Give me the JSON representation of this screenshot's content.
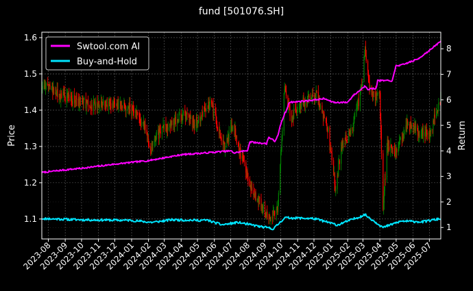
{
  "chart_data": {
    "type": "line",
    "title": "fund [501076.SH]",
    "ylabel_left": "Price",
    "ylabel_right": "Return",
    "ylim_left": [
      1.045,
      1.615
    ],
    "ylim_right": [
      0.55,
      8.65
    ],
    "y_ticks_left": [
      "1.1",
      "1.2",
      "1.3",
      "1.4",
      "1.5",
      "1.6"
    ],
    "y_ticks_right": [
      "1",
      "2",
      "3",
      "4",
      "5",
      "6",
      "7",
      "8"
    ],
    "x_ticks": [
      "2023-08",
      "2023-09",
      "2023-10",
      "2023-11",
      "2023-12",
      "2024-01",
      "2024-02",
      "2024-03",
      "2024-04",
      "2024-05",
      "2024-06",
      "2024-07",
      "2024-08",
      "2024-09",
      "2024-10",
      "2024-11",
      "2024-12",
      "2025-01",
      "2025-02",
      "2025-03",
      "2025-04",
      "2025-05",
      "2025-06",
      "2025-07"
    ],
    "grid": true,
    "legend_position": "top-left",
    "colors": {
      "up": "#008000",
      "down": "#ff0000",
      "strategy": "#ff00ff",
      "benchmark": "#00e5ff",
      "grid": "#666666"
    },
    "series": [
      {
        "name": "Swtool.com AI",
        "axis": "right",
        "points": [
          [
            "2023-07-20",
            3.15
          ],
          [
            "2023-08-15",
            3.22
          ],
          [
            "2023-10-01",
            3.32
          ],
          [
            "2023-12-01",
            3.48
          ],
          [
            "2024-02-01",
            3.62
          ],
          [
            "2024-04-01",
            3.85
          ],
          [
            "2024-06-01",
            3.95
          ],
          [
            "2024-07-01",
            4.0
          ],
          [
            "2024-07-08",
            3.92
          ],
          [
            "2024-08-01",
            4.02
          ],
          [
            "2024-08-05",
            4.35
          ],
          [
            "2024-09-05",
            4.28
          ],
          [
            "2024-09-08",
            4.55
          ],
          [
            "2024-09-20",
            4.38
          ],
          [
            "2024-09-26",
            4.6
          ],
          [
            "2024-10-01",
            5.05
          ],
          [
            "2024-10-08",
            5.45
          ],
          [
            "2024-10-12",
            5.6
          ],
          [
            "2024-10-16",
            5.9
          ],
          [
            "2024-11-15",
            5.95
          ],
          [
            "2024-12-20",
            6.05
          ],
          [
            "2025-01-05",
            5.9
          ],
          [
            "2025-02-01",
            5.9
          ],
          [
            "2025-02-10",
            6.15
          ],
          [
            "2025-02-25",
            6.4
          ],
          [
            "2025-03-05",
            6.55
          ],
          [
            "2025-03-10",
            6.42
          ],
          [
            "2025-03-25",
            6.45
          ],
          [
            "2025-03-28",
            6.75
          ],
          [
            "2025-04-24",
            6.75
          ],
          [
            "2025-05-01",
            7.35
          ],
          [
            "2025-05-10",
            7.35
          ],
          [
            "2025-06-10",
            7.6
          ],
          [
            "2025-07-08",
            8.05
          ],
          [
            "2025-07-22",
            8.3
          ]
        ]
      },
      {
        "name": "Buy-and-Hold",
        "axis": "right",
        "points": [
          [
            "2023-07-20",
            1.35
          ],
          [
            "2023-10-01",
            1.3
          ],
          [
            "2024-01-01",
            1.28
          ],
          [
            "2024-02-07",
            1.2
          ],
          [
            "2024-03-15",
            1.3
          ],
          [
            "2024-05-20",
            1.28
          ],
          [
            "2024-06-15",
            1.1
          ],
          [
            "2024-07-15",
            1.2
          ],
          [
            "2024-08-20",
            1.05
          ],
          [
            "2024-09-18",
            0.95
          ],
          [
            "2024-10-08",
            1.38
          ],
          [
            "2024-12-01",
            1.35
          ],
          [
            "2025-01-13",
            1.1
          ],
          [
            "2025-03-05",
            1.5
          ],
          [
            "2025-04-07",
            1.0
          ],
          [
            "2025-05-10",
            1.25
          ],
          [
            "2025-06-20",
            1.22
          ],
          [
            "2025-07-22",
            1.35
          ]
        ]
      },
      {
        "name": "price",
        "axis": "left",
        "points": [
          [
            "2023-07-20",
            1.46
          ],
          [
            "2023-08-05",
            1.47
          ],
          [
            "2023-08-20",
            1.44
          ],
          [
            "2023-09-10",
            1.43
          ],
          [
            "2023-10-20",
            1.41
          ],
          [
            "2023-11-20",
            1.42
          ],
          [
            "2023-12-20",
            1.41
          ],
          [
            "2024-01-10",
            1.39
          ],
          [
            "2024-01-25",
            1.35
          ],
          [
            "2024-02-05",
            1.29
          ],
          [
            "2024-02-15",
            1.33
          ],
          [
            "2024-03-10",
            1.36
          ],
          [
            "2024-04-10",
            1.39
          ],
          [
            "2024-04-25",
            1.36
          ],
          [
            "2024-05-25",
            1.42
          ],
          [
            "2024-06-10",
            1.34
          ],
          [
            "2024-06-20",
            1.3
          ],
          [
            "2024-07-05",
            1.36
          ],
          [
            "2024-07-20",
            1.27
          ],
          [
            "2024-08-10",
            1.18
          ],
          [
            "2024-08-25",
            1.14
          ],
          [
            "2024-09-10",
            1.1
          ],
          [
            "2024-09-25",
            1.12
          ],
          [
            "2024-10-08",
            1.46
          ],
          [
            "2024-10-20",
            1.38
          ],
          [
            "2024-11-10",
            1.42
          ],
          [
            "2024-12-05",
            1.44
          ],
          [
            "2024-12-25",
            1.36
          ],
          [
            "2025-01-10",
            1.18
          ],
          [
            "2025-01-20",
            1.3
          ],
          [
            "2025-02-10",
            1.35
          ],
          [
            "2025-02-28",
            1.47
          ],
          [
            "2025-03-05",
            1.57
          ],
          [
            "2025-03-15",
            1.44
          ],
          [
            "2025-04-01",
            1.44
          ],
          [
            "2025-04-07",
            1.13
          ],
          [
            "2025-04-15",
            1.31
          ],
          [
            "2025-05-01",
            1.28
          ],
          [
            "2025-05-20",
            1.36
          ],
          [
            "2025-06-15",
            1.34
          ],
          [
            "2025-07-01",
            1.33
          ],
          [
            "2025-07-22",
            1.44
          ]
        ]
      }
    ]
  }
}
